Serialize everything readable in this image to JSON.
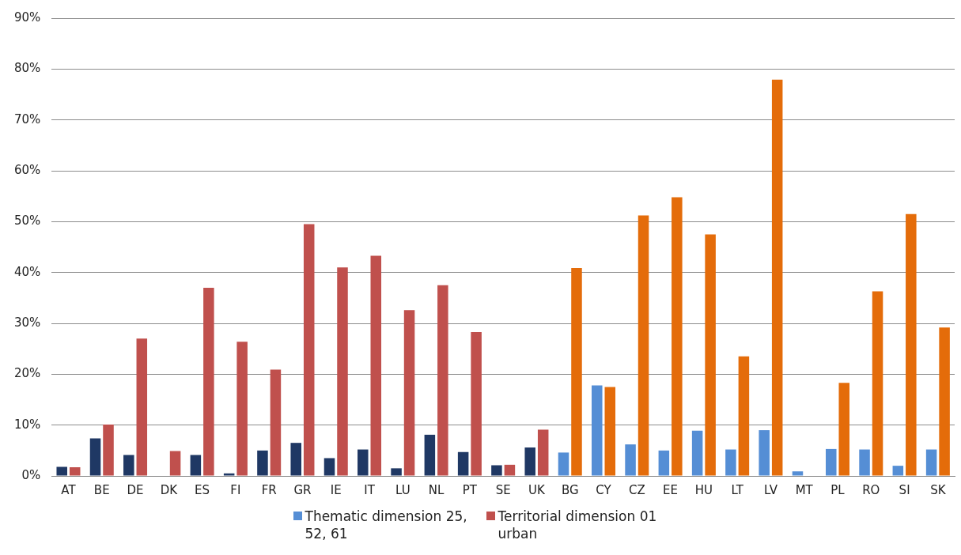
{
  "chart_data": {
    "type": "bar",
    "categories": [
      "AT",
      "BE",
      "DE",
      "DK",
      "ES",
      "FI",
      "FR",
      "GR",
      "IE",
      "IT",
      "LU",
      "NL",
      "PT",
      "SE",
      "UK",
      "BG",
      "CY",
      "CZ",
      "EE",
      "HU",
      "LT",
      "LV",
      "MT",
      "PL",
      "RO",
      "SI",
      "SK"
    ],
    "series": [
      {
        "name": "Thematic dimension 25, 52, 61",
        "color": "#558ed5",
        "colors": [
          "#1f3864",
          "#1f3864",
          "#1f3864",
          "#1f3864",
          "#1f3864",
          "#1f3864",
          "#1f3864",
          "#1f3864",
          "#1f3864",
          "#1f3864",
          "#1f3864",
          "#1f3864",
          "#1f3864",
          "#1f3864",
          "#1f3864",
          "#558ed5",
          "#558ed5",
          "#558ed5",
          "#558ed5",
          "#558ed5",
          "#558ed5",
          "#558ed5",
          "#558ed5",
          "#558ed5",
          "#558ed5",
          "#558ed5",
          "#558ed5"
        ],
        "values": [
          1.8,
          7.4,
          4.1,
          0,
          4.1,
          0.5,
          5.0,
          6.5,
          3.5,
          5.2,
          1.5,
          8.1,
          4.7,
          2.1,
          5.6,
          4.6,
          17.8,
          6.2,
          5.0,
          8.9,
          5.2,
          9.0,
          0.9,
          5.3,
          5.2,
          2.0,
          5.2
        ]
      },
      {
        "name": "Territorial dimension 01 urban",
        "color": "#c0504d",
        "colors": [
          "#c0504d",
          "#c0504d",
          "#c0504d",
          "#c0504d",
          "#c0504d",
          "#c0504d",
          "#c0504d",
          "#c0504d",
          "#c0504d",
          "#c0504d",
          "#c0504d",
          "#c0504d",
          "#c0504d",
          "#c0504d",
          "#c0504d",
          "#e46c0a",
          "#e46c0a",
          "#e46c0a",
          "#e46c0a",
          "#e46c0a",
          "#e46c0a",
          "#e46c0a",
          "#e46c0a",
          "#e46c0a",
          "#e46c0a",
          "#e46c0a",
          "#e46c0a"
        ],
        "values": [
          1.7,
          10.1,
          27.0,
          4.9,
          37.0,
          26.4,
          20.9,
          49.5,
          41.0,
          43.3,
          32.6,
          37.5,
          28.3,
          2.2,
          9.1,
          40.9,
          17.5,
          51.2,
          54.8,
          47.5,
          23.5,
          77.9,
          0,
          18.3,
          36.3,
          51.5,
          29.2
        ]
      }
    ],
    "ylim": [
      0,
      90
    ],
    "yticks": [
      {
        "value": 0,
        "label": "0%"
      },
      {
        "value": 10,
        "label": "10%"
      },
      {
        "value": 20,
        "label": "20%"
      },
      {
        "value": 30,
        "label": "30%"
      },
      {
        "value": 40,
        "label": "40%"
      },
      {
        "value": 50,
        "label": "50%"
      },
      {
        "value": 60,
        "label": "60%"
      },
      {
        "value": 70,
        "label": "70%"
      },
      {
        "value": 80,
        "label": "80%"
      },
      {
        "value": 90,
        "label": "90%"
      }
    ],
    "grid": "y",
    "legend": "bottom"
  }
}
